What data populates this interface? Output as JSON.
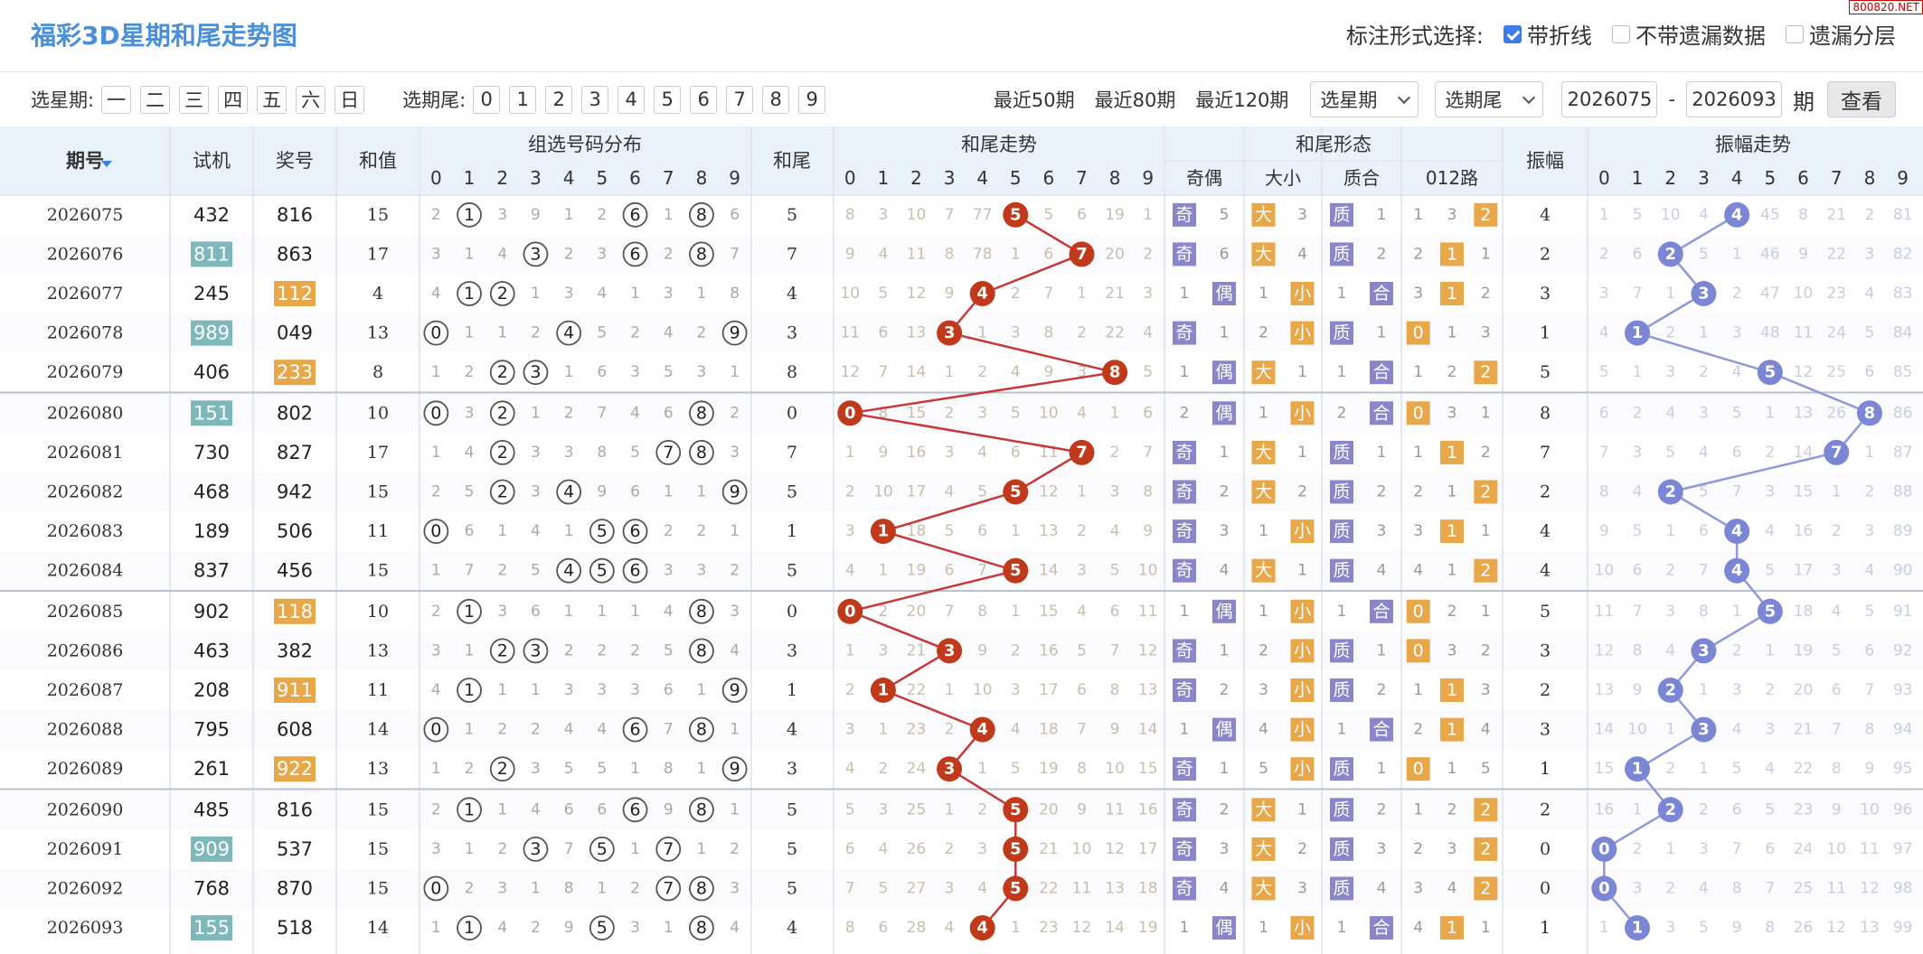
{
  "title": "福彩3D星期和尾走势图",
  "watermark": "800820.NET",
  "mark": {
    "label": "标注形式选择:",
    "options": [
      {
        "label": "带折线",
        "checked": true
      },
      {
        "label": "不带遗漏数据",
        "checked": false
      },
      {
        "label": "遗漏分层",
        "checked": false
      }
    ]
  },
  "filters": {
    "weekday_label": "选星期:",
    "weekdays": [
      "一",
      "二",
      "三",
      "四",
      "五",
      "六",
      "日"
    ],
    "tail_label": "选期尾:",
    "tails": [
      "0",
      "1",
      "2",
      "3",
      "4",
      "5",
      "6",
      "7",
      "8",
      "9"
    ],
    "recent": [
      "最近50期",
      "最近80期",
      "最近120期"
    ],
    "select_weekday": "选星期",
    "select_tail": "选期尾",
    "from": "2026075",
    "dash": "-",
    "to": "2026093",
    "unit": "期",
    "query": "查看"
  },
  "headers": {
    "issue": "期号",
    "trial": "试机",
    "prize": "奖号",
    "sum": "和值",
    "group_dist": "组选号码分布",
    "tail": "和尾",
    "tail_trend": "和尾走势",
    "tail_form": "和尾形态",
    "odd_even": "奇偶",
    "big_small": "大小",
    "prime": "质合",
    "road": "012路",
    "amp": "振幅",
    "amp_trend": "振幅走势",
    "digits": [
      "0",
      "1",
      "2",
      "3",
      "4",
      "5",
      "6",
      "7",
      "8",
      "9"
    ]
  },
  "colors": {
    "header_bg": "#e9f2fb",
    "accent_blue": "#4a90d9",
    "tail_ball": "#c0391b",
    "amp_ball": "#7b86d4",
    "teal": "#7fb8bb",
    "orange": "#e8a84a",
    "purple_box": "#8a86c9"
  },
  "rows": [
    {
      "issue": "2026075",
      "trial": "432",
      "trial_hl": false,
      "prize": "816",
      "prize_hl": false,
      "sum": "15",
      "dist": [
        "2",
        "1",
        "3",
        "9",
        "1",
        "2",
        "6",
        "1",
        "8",
        "6"
      ],
      "tail": "5",
      "tt": [
        "8",
        "3",
        "10",
        "7",
        "77",
        "5",
        "5",
        "6",
        "19",
        "1"
      ],
      "oe": [
        "奇",
        "5"
      ],
      "bs": [
        "大",
        "3"
      ],
      "pc": [
        "质",
        "1"
      ],
      "rd": [
        "1",
        "3",
        "2"
      ],
      "amp": "4",
      "at": [
        "1",
        "5",
        "10",
        "4",
        "4",
        "45",
        "8",
        "21",
        "2",
        "81"
      ]
    },
    {
      "issue": "2026076",
      "trial": "811",
      "trial_hl": true,
      "prize": "863",
      "prize_hl": false,
      "sum": "17",
      "dist": [
        "3",
        "1",
        "4",
        "3",
        "2",
        "3",
        "6",
        "2",
        "8",
        "7"
      ],
      "tail": "7",
      "tt": [
        "9",
        "4",
        "11",
        "8",
        "78",
        "1",
        "6",
        "7",
        "20",
        "2"
      ],
      "oe": [
        "奇",
        "6"
      ],
      "bs": [
        "大",
        "4"
      ],
      "pc": [
        "质",
        "2"
      ],
      "rd": [
        "2",
        "1",
        "1"
      ],
      "amp": "2",
      "at": [
        "2",
        "6",
        "2",
        "5",
        "1",
        "46",
        "9",
        "22",
        "3",
        "82"
      ]
    },
    {
      "issue": "2026077",
      "trial": "245",
      "trial_hl": false,
      "prize": "112",
      "prize_hl": true,
      "sum": "4",
      "dist": [
        "4",
        "1",
        "2",
        "1",
        "3",
        "4",
        "1",
        "3",
        "1",
        "8"
      ],
      "tail": "4",
      "tt": [
        "10",
        "5",
        "12",
        "9",
        "4",
        "2",
        "7",
        "1",
        "21",
        "3"
      ],
      "oe": [
        "1",
        "偶"
      ],
      "bs": [
        "1",
        "小"
      ],
      "pc": [
        "1",
        "合"
      ],
      "rd": [
        "3",
        "1",
        "2"
      ],
      "amp": "3",
      "at": [
        "3",
        "7",
        "1",
        "3",
        "2",
        "47",
        "10",
        "23",
        "4",
        "83"
      ]
    },
    {
      "issue": "2026078",
      "trial": "989",
      "trial_hl": true,
      "prize": "049",
      "prize_hl": false,
      "sum": "13",
      "dist": [
        "0",
        "1",
        "1",
        "2",
        "4",
        "5",
        "2",
        "4",
        "2",
        "9"
      ],
      "tail": "3",
      "tt": [
        "11",
        "6",
        "13",
        "3",
        "1",
        "3",
        "8",
        "2",
        "22",
        "4"
      ],
      "oe": [
        "奇",
        "1"
      ],
      "bs": [
        "2",
        "小"
      ],
      "pc": [
        "质",
        "1"
      ],
      "rd": [
        "0",
        "1",
        "3"
      ],
      "amp": "1",
      "at": [
        "4",
        "1",
        "2",
        "1",
        "3",
        "48",
        "11",
        "24",
        "5",
        "84"
      ]
    },
    {
      "issue": "2026079",
      "trial": "406",
      "trial_hl": false,
      "prize": "233",
      "prize_hl": true,
      "sum": "8",
      "dist": [
        "1",
        "2",
        "2",
        "3",
        "1",
        "6",
        "3",
        "5",
        "3",
        "1"
      ],
      "tail": "8",
      "tt": [
        "12",
        "7",
        "14",
        "1",
        "2",
        "4",
        "9",
        "3",
        "8",
        "5"
      ],
      "oe": [
        "1",
        "偶"
      ],
      "bs": [
        "大",
        "1"
      ],
      "pc": [
        "1",
        "合"
      ],
      "rd": [
        "1",
        "2",
        "2"
      ],
      "amp": "5",
      "at": [
        "5",
        "1",
        "3",
        "2",
        "4",
        "5",
        "12",
        "25",
        "6",
        "85"
      ]
    },
    {
      "issue": "2026080",
      "trial": "151",
      "trial_hl": true,
      "prize": "802",
      "prize_hl": false,
      "sum": "10",
      "dist": [
        "0",
        "3",
        "2",
        "1",
        "2",
        "7",
        "4",
        "6",
        "8",
        "2"
      ],
      "tail": "0",
      "tt": [
        "0",
        "8",
        "15",
        "2",
        "3",
        "5",
        "10",
        "4",
        "1",
        "6"
      ],
      "oe": [
        "2",
        "偶"
      ],
      "bs": [
        "1",
        "小"
      ],
      "pc": [
        "2",
        "合"
      ],
      "rd": [
        "0",
        "3",
        "1"
      ],
      "amp": "8",
      "at": [
        "6",
        "2",
        "4",
        "3",
        "5",
        "1",
        "13",
        "26",
        "8",
        "86"
      ]
    },
    {
      "issue": "2026081",
      "trial": "730",
      "trial_hl": false,
      "prize": "827",
      "prize_hl": false,
      "sum": "17",
      "dist": [
        "1",
        "4",
        "2",
        "3",
        "3",
        "8",
        "5",
        "7",
        "8",
        "3"
      ],
      "tail": "7",
      "tt": [
        "1",
        "9",
        "16",
        "3",
        "4",
        "6",
        "11",
        "7",
        "2",
        "7"
      ],
      "oe": [
        "奇",
        "1"
      ],
      "bs": [
        "大",
        "1"
      ],
      "pc": [
        "质",
        "1"
      ],
      "rd": [
        "1",
        "1",
        "2"
      ],
      "amp": "7",
      "at": [
        "7",
        "3",
        "5",
        "4",
        "6",
        "2",
        "14",
        "7",
        "1",
        "87"
      ]
    },
    {
      "issue": "2026082",
      "trial": "468",
      "trial_hl": false,
      "prize": "942",
      "prize_hl": false,
      "sum": "15",
      "dist": [
        "2",
        "5",
        "2",
        "3",
        "4",
        "9",
        "6",
        "1",
        "1",
        "9"
      ],
      "tail": "5",
      "tt": [
        "2",
        "10",
        "17",
        "4",
        "5",
        "5",
        "12",
        "1",
        "3",
        "8"
      ],
      "oe": [
        "奇",
        "2"
      ],
      "bs": [
        "大",
        "2"
      ],
      "pc": [
        "质",
        "2"
      ],
      "rd": [
        "2",
        "1",
        "2"
      ],
      "amp": "2",
      "at": [
        "8",
        "4",
        "2",
        "5",
        "7",
        "3",
        "15",
        "1",
        "2",
        "88"
      ]
    },
    {
      "issue": "2026083",
      "trial": "189",
      "trial_hl": false,
      "prize": "506",
      "prize_hl": false,
      "sum": "11",
      "dist": [
        "0",
        "6",
        "1",
        "4",
        "1",
        "5",
        "6",
        "2",
        "2",
        "1"
      ],
      "tail": "1",
      "tt": [
        "3",
        "1",
        "18",
        "5",
        "6",
        "1",
        "13",
        "2",
        "4",
        "9"
      ],
      "oe": [
        "奇",
        "3"
      ],
      "bs": [
        "1",
        "小"
      ],
      "pc": [
        "质",
        "3"
      ],
      "rd": [
        "3",
        "1",
        "1"
      ],
      "amp": "4",
      "at": [
        "9",
        "5",
        "1",
        "6",
        "4",
        "4",
        "16",
        "2",
        "3",
        "89"
      ]
    },
    {
      "issue": "2026084",
      "trial": "837",
      "trial_hl": false,
      "prize": "456",
      "prize_hl": false,
      "sum": "15",
      "dist": [
        "1",
        "7",
        "2",
        "5",
        "4",
        "5",
        "6",
        "3",
        "3",
        "2"
      ],
      "tail": "5",
      "tt": [
        "4",
        "1",
        "19",
        "6",
        "7",
        "5",
        "14",
        "3",
        "5",
        "10"
      ],
      "oe": [
        "奇",
        "4"
      ],
      "bs": [
        "大",
        "1"
      ],
      "pc": [
        "质",
        "4"
      ],
      "rd": [
        "4",
        "1",
        "2"
      ],
      "amp": "4",
      "at": [
        "10",
        "6",
        "2",
        "7",
        "4",
        "5",
        "17",
        "3",
        "4",
        "90"
      ]
    },
    {
      "issue": "2026085",
      "trial": "902",
      "trial_hl": false,
      "prize": "118",
      "prize_hl": true,
      "sum": "10",
      "dist": [
        "2",
        "1",
        "3",
        "6",
        "1",
        "1",
        "1",
        "4",
        "8",
        "3"
      ],
      "tail": "0",
      "tt": [
        "0",
        "2",
        "20",
        "7",
        "8",
        "1",
        "15",
        "4",
        "6",
        "11"
      ],
      "oe": [
        "1",
        "偶"
      ],
      "bs": [
        "1",
        "小"
      ],
      "pc": [
        "1",
        "合"
      ],
      "rd": [
        "0",
        "2",
        "1"
      ],
      "amp": "5",
      "at": [
        "11",
        "7",
        "3",
        "8",
        "1",
        "5",
        "18",
        "4",
        "5",
        "91"
      ]
    },
    {
      "issue": "2026086",
      "trial": "463",
      "trial_hl": false,
      "prize": "382",
      "prize_hl": false,
      "sum": "13",
      "dist": [
        "3",
        "1",
        "2",
        "3",
        "2",
        "2",
        "2",
        "5",
        "8",
        "4"
      ],
      "tail": "3",
      "tt": [
        "1",
        "3",
        "21",
        "3",
        "9",
        "2",
        "16",
        "5",
        "7",
        "12"
      ],
      "oe": [
        "奇",
        "1"
      ],
      "bs": [
        "2",
        "小"
      ],
      "pc": [
        "质",
        "1"
      ],
      "rd": [
        "0",
        "3",
        "2"
      ],
      "amp": "3",
      "at": [
        "12",
        "8",
        "4",
        "3",
        "2",
        "1",
        "19",
        "5",
        "6",
        "92"
      ]
    },
    {
      "issue": "2026087",
      "trial": "208",
      "trial_hl": false,
      "prize": "911",
      "prize_hl": true,
      "sum": "11",
      "dist": [
        "4",
        "1",
        "1",
        "1",
        "3",
        "3",
        "3",
        "6",
        "1",
        "9"
      ],
      "tail": "1",
      "tt": [
        "2",
        "1",
        "22",
        "1",
        "10",
        "3",
        "17",
        "6",
        "8",
        "13"
      ],
      "oe": [
        "奇",
        "2"
      ],
      "bs": [
        "3",
        "小"
      ],
      "pc": [
        "质",
        "2"
      ],
      "rd": [
        "1",
        "1",
        "3"
      ],
      "amp": "2",
      "at": [
        "13",
        "9",
        "2",
        "1",
        "3",
        "2",
        "20",
        "6",
        "7",
        "93"
      ]
    },
    {
      "issue": "2026088",
      "trial": "795",
      "trial_hl": false,
      "prize": "608",
      "prize_hl": false,
      "sum": "14",
      "dist": [
        "0",
        "1",
        "2",
        "2",
        "4",
        "4",
        "6",
        "7",
        "8",
        "1"
      ],
      "tail": "4",
      "tt": [
        "3",
        "1",
        "23",
        "2",
        "4",
        "4",
        "18",
        "7",
        "9",
        "14"
      ],
      "oe": [
        "1",
        "偶"
      ],
      "bs": [
        "4",
        "小"
      ],
      "pc": [
        "1",
        "合"
      ],
      "rd": [
        "2",
        "1",
        "4"
      ],
      "amp": "3",
      "at": [
        "14",
        "10",
        "1",
        "3",
        "4",
        "3",
        "21",
        "7",
        "8",
        "94"
      ]
    },
    {
      "issue": "2026089",
      "trial": "261",
      "trial_hl": false,
      "prize": "922",
      "prize_hl": true,
      "sum": "13",
      "dist": [
        "1",
        "2",
        "2",
        "3",
        "5",
        "5",
        "1",
        "8",
        "1",
        "9"
      ],
      "tail": "3",
      "tt": [
        "4",
        "2",
        "24",
        "3",
        "1",
        "5",
        "19",
        "8",
        "10",
        "15"
      ],
      "oe": [
        "奇",
        "1"
      ],
      "bs": [
        "5",
        "小"
      ],
      "pc": [
        "质",
        "1"
      ],
      "rd": [
        "0",
        "1",
        "5"
      ],
      "amp": "1",
      "at": [
        "15",
        "1",
        "2",
        "1",
        "5",
        "4",
        "22",
        "8",
        "9",
        "95"
      ]
    },
    {
      "issue": "2026090",
      "trial": "485",
      "trial_hl": false,
      "prize": "816",
      "prize_hl": false,
      "sum": "15",
      "dist": [
        "2",
        "1",
        "1",
        "4",
        "6",
        "6",
        "6",
        "9",
        "8",
        "1"
      ],
      "tail": "5",
      "tt": [
        "5",
        "3",
        "25",
        "1",
        "2",
        "5",
        "20",
        "9",
        "11",
        "16"
      ],
      "oe": [
        "奇",
        "2"
      ],
      "bs": [
        "大",
        "1"
      ],
      "pc": [
        "质",
        "2"
      ],
      "rd": [
        "1",
        "2",
        "2"
      ],
      "amp": "2",
      "at": [
        "16",
        "1",
        "2",
        "2",
        "6",
        "5",
        "23",
        "9",
        "10",
        "96"
      ]
    },
    {
      "issue": "2026091",
      "trial": "909",
      "trial_hl": true,
      "prize": "537",
      "prize_hl": false,
      "sum": "15",
      "dist": [
        "3",
        "1",
        "2",
        "3",
        "7",
        "5",
        "1",
        "7",
        "1",
        "2"
      ],
      "tail": "5",
      "tt": [
        "6",
        "4",
        "26",
        "2",
        "3",
        "5",
        "21",
        "10",
        "12",
        "17"
      ],
      "oe": [
        "奇",
        "3"
      ],
      "bs": [
        "大",
        "2"
      ],
      "pc": [
        "质",
        "3"
      ],
      "rd": [
        "2",
        "3",
        "2"
      ],
      "amp": "0",
      "at": [
        "0",
        "2",
        "1",
        "3",
        "7",
        "6",
        "24",
        "10",
        "11",
        "97"
      ]
    },
    {
      "issue": "2026092",
      "trial": "768",
      "trial_hl": false,
      "prize": "870",
      "prize_hl": false,
      "sum": "15",
      "dist": [
        "0",
        "2",
        "3",
        "1",
        "8",
        "1",
        "2",
        "7",
        "8",
        "3"
      ],
      "tail": "5",
      "tt": [
        "7",
        "5",
        "27",
        "3",
        "4",
        "5",
        "22",
        "11",
        "13",
        "18"
      ],
      "oe": [
        "奇",
        "4"
      ],
      "bs": [
        "大",
        "3"
      ],
      "pc": [
        "质",
        "4"
      ],
      "rd": [
        "3",
        "4",
        "2"
      ],
      "amp": "0",
      "at": [
        "0",
        "3",
        "2",
        "4",
        "8",
        "7",
        "25",
        "11",
        "12",
        "98"
      ]
    },
    {
      "issue": "2026093",
      "trial": "155",
      "trial_hl": true,
      "prize": "518",
      "prize_hl": false,
      "sum": "14",
      "dist": [
        "1",
        "1",
        "4",
        "2",
        "9",
        "5",
        "3",
        "1",
        "8",
        "4"
      ],
      "tail": "4",
      "tt": [
        "8",
        "6",
        "28",
        "4",
        "4",
        "1",
        "23",
        "12",
        "14",
        "19"
      ],
      "oe": [
        "1",
        "偶"
      ],
      "bs": [
        "1",
        "小"
      ],
      "pc": [
        "1",
        "合"
      ],
      "rd": [
        "4",
        "1",
        "1"
      ],
      "amp": "1",
      "at": [
        "1",
        "1",
        "3",
        "5",
        "9",
        "8",
        "26",
        "12",
        "13",
        "99"
      ]
    }
  ],
  "circled": [
    [
      1,
      8,
      6
    ],
    [
      3,
      6,
      8
    ],
    [
      1,
      2
    ],
    [
      0,
      4,
      9
    ],
    [
      2,
      3
    ],
    [
      0,
      2,
      8
    ],
    [
      2,
      7,
      8
    ],
    [
      2,
      4,
      9
    ],
    [
      0,
      5,
      6
    ],
    [
      4,
      5,
      6
    ],
    [
      1,
      8
    ],
    [
      2,
      3,
      8
    ],
    [
      1,
      9
    ],
    [
      0,
      6,
      8
    ],
    [
      2,
      9
    ],
    [
      1,
      6,
      8
    ],
    [
      3,
      5,
      7
    ],
    [
      0,
      7,
      8
    ],
    [
      1,
      5,
      8
    ]
  ],
  "red_circled": [
    [],
    [],
    [
      1
    ],
    [],
    [
      3
    ],
    [],
    [],
    [],
    [],
    [],
    [
      1
    ],
    [],
    [
      1
    ],
    [],
    [
      2
    ],
    [],
    [],
    [],
    []
  ]
}
